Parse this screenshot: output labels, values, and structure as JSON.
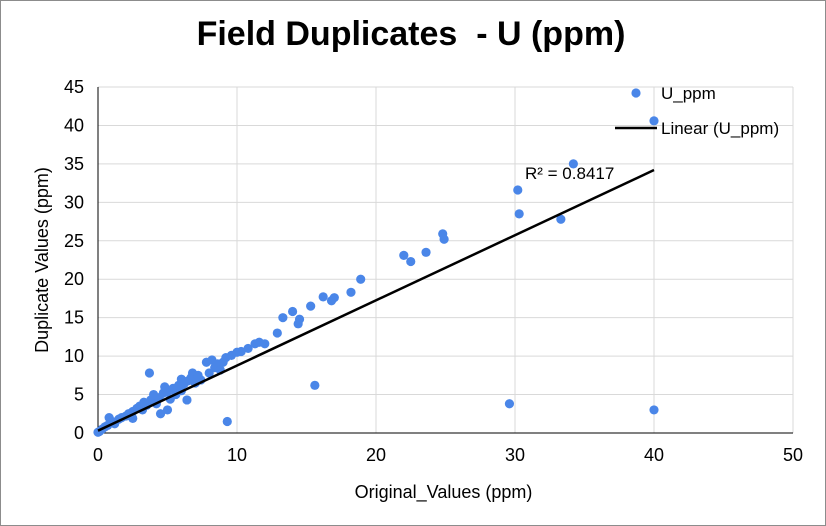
{
  "chart_data": {
    "type": "scatter",
    "title": "Field Duplicates  - U (ppm)",
    "xlabel": "Original_Values (ppm)",
    "ylabel": "Duplicate Values (ppm)",
    "xlim": [
      0,
      50
    ],
    "ylim": [
      0,
      45
    ],
    "xticks": [
      0,
      10,
      20,
      30,
      40,
      50
    ],
    "yticks": [
      0,
      5,
      10,
      15,
      20,
      25,
      30,
      35,
      40,
      45
    ],
    "grid": true,
    "legend_position": "top-right",
    "series": [
      {
        "name": "U_ppm",
        "color": "#4a86e8",
        "points": [
          [
            0,
            0.1
          ],
          [
            0.1,
            0.2
          ],
          [
            0.3,
            0.5
          ],
          [
            0.5,
            0.8
          ],
          [
            0.7,
            1.0
          ],
          [
            0.8,
            2.0
          ],
          [
            1.0,
            1.5
          ],
          [
            1.2,
            1.2
          ],
          [
            1.5,
            1.8
          ],
          [
            1.7,
            2.0
          ],
          [
            2.0,
            2.2
          ],
          [
            2.2,
            2.5
          ],
          [
            2.5,
            1.9
          ],
          [
            2.5,
            2.8
          ],
          [
            2.8,
            3.2
          ],
          [
            3.0,
            3.5
          ],
          [
            3.2,
            3.0
          ],
          [
            3.3,
            4.0
          ],
          [
            3.5,
            3.6
          ],
          [
            3.7,
            7.8
          ],
          [
            3.8,
            4.3
          ],
          [
            4.0,
            5.0
          ],
          [
            4.2,
            3.8
          ],
          [
            4.4,
            4.6
          ],
          [
            4.5,
            2.5
          ],
          [
            4.7,
            5.2
          ],
          [
            4.8,
            6.0
          ],
          [
            5.0,
            3.0
          ],
          [
            5.0,
            5.4
          ],
          [
            5.2,
            4.4
          ],
          [
            5.4,
            5.8
          ],
          [
            5.6,
            5.0
          ],
          [
            5.8,
            6.2
          ],
          [
            6.0,
            5.5
          ],
          [
            6.0,
            7.0
          ],
          [
            6.2,
            6.4
          ],
          [
            6.4,
            4.3
          ],
          [
            6.5,
            6.8
          ],
          [
            6.7,
            7.2
          ],
          [
            6.8,
            7.8
          ],
          [
            7.0,
            6.5
          ],
          [
            7.2,
            7.5
          ],
          [
            7.4,
            6.9
          ],
          [
            7.8,
            9.2
          ],
          [
            8.0,
            7.8
          ],
          [
            8.2,
            9.5
          ],
          [
            8.4,
            8.5
          ],
          [
            8.6,
            9.0
          ],
          [
            8.8,
            8.2
          ],
          [
            9.0,
            9.2
          ],
          [
            9.2,
            9.8
          ],
          [
            9.3,
            1.5
          ],
          [
            9.6,
            10.1
          ],
          [
            10.0,
            10.5
          ],
          [
            10.3,
            10.6
          ],
          [
            10.8,
            11.0
          ],
          [
            11.3,
            11.6
          ],
          [
            11.6,
            11.8
          ],
          [
            12.0,
            11.6
          ],
          [
            12.9,
            13.0
          ],
          [
            13.3,
            15.0
          ],
          [
            14.0,
            15.8
          ],
          [
            14.4,
            14.2
          ],
          [
            14.5,
            14.8
          ],
          [
            15.3,
            16.5
          ],
          [
            15.6,
            6.2
          ],
          [
            16.2,
            17.7
          ],
          [
            16.8,
            17.2
          ],
          [
            17.0,
            17.6
          ],
          [
            18.2,
            18.3
          ],
          [
            18.9,
            20.0
          ],
          [
            22.0,
            23.1
          ],
          [
            22.5,
            22.3
          ],
          [
            23.6,
            23.5
          ],
          [
            24.8,
            25.9
          ],
          [
            24.9,
            25.2
          ],
          [
            29.6,
            3.8
          ],
          [
            30.2,
            31.6
          ],
          [
            30.3,
            28.5
          ],
          [
            33.3,
            27.8
          ],
          [
            34.2,
            35.0
          ],
          [
            40.0,
            40.6
          ],
          [
            40.0,
            3.0
          ]
        ]
      }
    ],
    "trendline": {
      "name": "Linear (U_ppm)",
      "type": "linear",
      "from": [
        0,
        0.3
      ],
      "to": [
        40,
        34.2
      ],
      "color": "#000000",
      "r2_label": "R² = 0.8417"
    }
  }
}
